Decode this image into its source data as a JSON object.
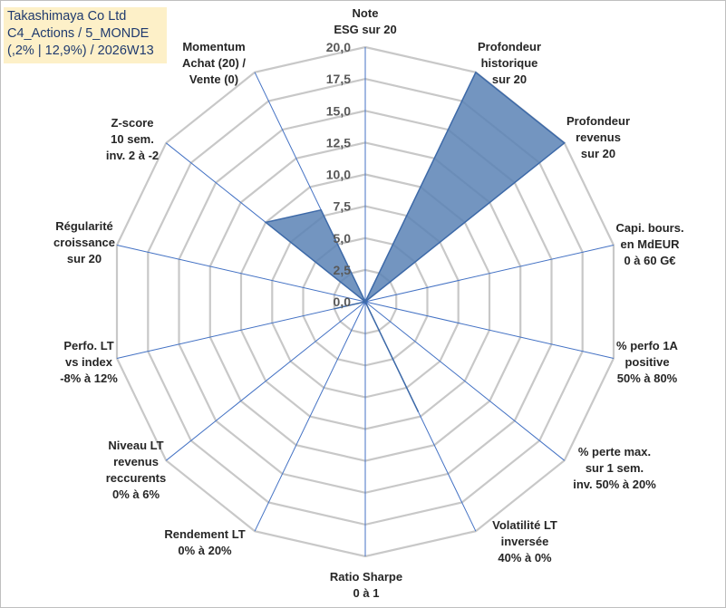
{
  "title_box": {
    "lines": [
      "Takashimaya Co Ltd",
      "C4_Actions / 5_MONDE",
      "(,2% | 12,9%) / 2026W13"
    ]
  },
  "colors": {
    "grid": "#c8c8c8",
    "spoke": "#4472c4",
    "fill": "#5b82b5",
    "stroke": "#3e6aa8",
    "title_bg": "#fdf0c8",
    "title_text": "#1f3a6e"
  },
  "chart_data": {
    "type": "radar",
    "rmin": 0,
    "rmax": 20,
    "ticks": [
      "0,0",
      "2,5",
      "5,0",
      "7,5",
      "10,0",
      "12,5",
      "15,0",
      "17,5",
      "20,0"
    ],
    "tick_values": [
      0,
      2.5,
      5,
      7.5,
      10,
      12.5,
      15,
      17.5,
      20
    ],
    "grid_levels": [
      2.5,
      5,
      7.5,
      10,
      12.5,
      15,
      17.5,
      20
    ],
    "axes": [
      {
        "label": [
          "Note",
          "ESG sur 20"
        ],
        "value": 0,
        "anchor": "middle"
      },
      {
        "label": [
          "Profondeur",
          "historique",
          "sur 20"
        ],
        "value": 20,
        "anchor": "middle"
      },
      {
        "label": [
          "Profondeur",
          "revenus",
          "sur 20"
        ],
        "value": 20,
        "anchor": "middle"
      },
      {
        "label": [
          "Capi. bours.",
          "en MdEUR",
          "0 à 60 G€"
        ],
        "value": 0,
        "anchor": "middle"
      },
      {
        "label": [
          "% perfo 1A",
          "positive",
          "50% à 80%"
        ],
        "value": 0,
        "anchor": "middle"
      },
      {
        "label": [
          "% perte max.",
          "sur 1 sem.",
          "inv. 50% à 20%"
        ],
        "value": 0,
        "anchor": "middle"
      },
      {
        "label": [
          "Volatilité LT",
          "inversée",
          "40% à 0%"
        ],
        "value": 9.6,
        "anchor": "middle"
      },
      {
        "label": [
          "Ratio Sharpe",
          "0 à 1"
        ],
        "value": 0,
        "anchor": "middle"
      },
      {
        "label": [
          "Rendement LT",
          "0% à 20%"
        ],
        "value": 0,
        "anchor": "middle"
      },
      {
        "label": [
          "Niveau LT",
          "revenus",
          "reccurents",
          "0% à 6%"
        ],
        "value": 0,
        "anchor": "middle"
      },
      {
        "label": [
          "Perfo. LT",
          "vs index",
          "-8% à 12%"
        ],
        "value": 2.5,
        "anchor": "middle"
      },
      {
        "label": [
          "Régularité",
          "croissance",
          "sur 20"
        ],
        "value": 0,
        "anchor": "middle"
      },
      {
        "label": [
          "Z-score",
          "10 sem.",
          "inv. 2 à -2"
        ],
        "value": 10,
        "anchor": "middle"
      },
      {
        "label": [
          "Momentum",
          "Achat (20) /",
          "Vente (0)"
        ],
        "value": 8,
        "anchor": "middle"
      }
    ]
  }
}
